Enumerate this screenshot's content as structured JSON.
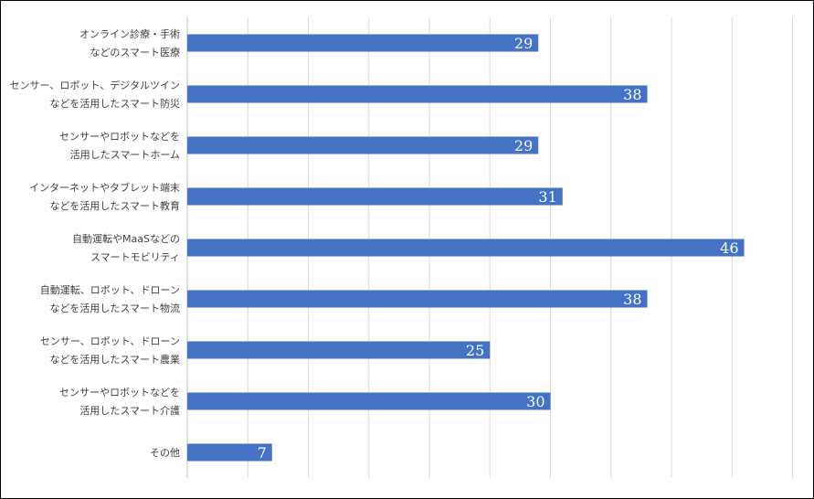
{
  "chart_data": {
    "type": "bar",
    "orientation": "horizontal",
    "title": "",
    "xlabel": "",
    "ylabel": "",
    "xlim": [
      0,
      50
    ],
    "grid": true,
    "legend": "none",
    "bar_color": "#4472C4",
    "categories": [
      [
        "オンライン診療・手術",
        "などのスマート医療"
      ],
      [
        "センサー、ロボット、デジタルツイン",
        "などを活用したスマート防災"
      ],
      [
        "センサーやロボットなどを",
        "活用したスマートホーム"
      ],
      [
        "インターネットやタブレット端末",
        "などを活用したスマート教育"
      ],
      [
        "自動運転やMaaSなどの",
        "スマートモビリティ"
      ],
      [
        "自動運転、ロボット、ドローン",
        "などを活用したスマート物流"
      ],
      [
        "センサー、ロボット、ドローン",
        "などを活用したスマート農業"
      ],
      [
        "センサーやロボットなどを",
        "活用したスマート介護"
      ],
      [
        "その他"
      ]
    ],
    "values": [
      29,
      38,
      29,
      31,
      46,
      38,
      25,
      30,
      7
    ]
  }
}
